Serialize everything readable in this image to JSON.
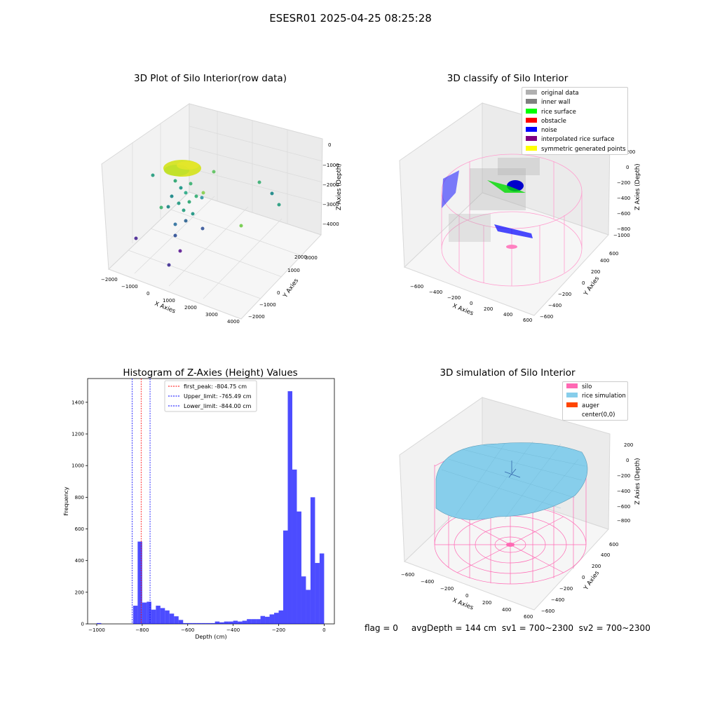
{
  "suptitle": "ESESR01 2025-04-25 08:25:28",
  "panels": {
    "raw": {
      "title": "3D Plot of Silo Interior(row data)",
      "xlabel": "X Axies",
      "ylabel": "Y Axies",
      "zlabel": "Z Axies (Depth)",
      "xticks": [
        "−2000",
        "−1000",
        "0",
        "1000",
        "2000",
        "3000",
        "4000"
      ],
      "yticks": [
        "−2000",
        "−1000",
        "0",
        "1000",
        "2000",
        "3000"
      ],
      "zticks": [
        "0",
        "−1000",
        "−2000",
        "−3000",
        "−4000"
      ]
    },
    "classify": {
      "title": "3D classify of Silo Interior",
      "xlabel": "X Axies",
      "ylabel": "Y Axies",
      "zlabel": "Z Axies (Depth)",
      "xticks": [
        "−600",
        "−400",
        "−200",
        "0",
        "200",
        "400",
        "600"
      ],
      "yticks": [
        "−600",
        "−400",
        "−200",
        "0",
        "200",
        "400",
        "600"
      ],
      "zticks": [
        "200",
        "0",
        "−200",
        "−400",
        "−600",
        "−800",
        "−1000"
      ],
      "legend": [
        {
          "label": "original data",
          "color": "#b0b0b0"
        },
        {
          "label": "inner wall",
          "color": "#808080"
        },
        {
          "label": "rice surface",
          "color": "#00ff00"
        },
        {
          "label": "obstacle",
          "color": "#ff0000"
        },
        {
          "label": "noise",
          "color": "#0000ff"
        },
        {
          "label": "interpolated rice surface",
          "color": "#800080"
        },
        {
          "label": "symmetric generated points",
          "color": "#ffff00"
        }
      ]
    },
    "histogram": {
      "title": "Histogram of Z-Axies (Height) Values",
      "xlabel": "Depth (cm)",
      "ylabel": "Frequency",
      "legend": [
        {
          "label": "first_peak: -804.75 cm",
          "color": "#ff0000"
        },
        {
          "label": "Upper_limit: -765.49 cm",
          "color": "#0000ff"
        },
        {
          "label": "Lower_limit: -844.00 cm",
          "color": "#0000ff"
        }
      ]
    },
    "simulation": {
      "title": "3D simulation of Silo Interior",
      "xlabel": "X Axies",
      "ylabel": "Y Axies",
      "zlabel": "Z Axies (Depth)",
      "xticks": [
        "−600",
        "−400",
        "−200",
        "0",
        "200",
        "400",
        "600"
      ],
      "yticks": [
        "−600",
        "−400",
        "−200",
        "0",
        "200",
        "400",
        "600"
      ],
      "zticks": [
        "200",
        "0",
        "−200",
        "−400",
        "−600",
        "−800"
      ],
      "legend": [
        {
          "label": "silo",
          "color": "#ff69b4"
        },
        {
          "label": "rice simulation",
          "color": "#87ceeb"
        },
        {
          "label": "auger",
          "color": "#ff4500"
        },
        {
          "label": "center(0,0)",
          "color": ""
        }
      ]
    }
  },
  "footer": "flag = 0     avgDepth = 144 cm  sv1 = 700~2300  sv2 = 700~2300",
  "chart_data": {
    "type": "bar",
    "title": "Histogram of Z-Axies (Height) Values",
    "xlabel": "Depth (cm)",
    "ylabel": "Frequency",
    "xlim": [
      -1040,
      45
    ],
    "ylim": [
      0,
      1550
    ],
    "xticks": [
      -1000,
      -800,
      -600,
      -400,
      -200,
      0
    ],
    "yticks": [
      0,
      200,
      400,
      600,
      800,
      1000,
      1200,
      1400
    ],
    "bar_color": "#0000ff",
    "bin_width": 20,
    "bins": [
      {
        "x": -980,
        "v": 5
      },
      {
        "x": -820,
        "v": 115
      },
      {
        "x": -800,
        "v": 520
      },
      {
        "x": -780,
        "v": 135
      },
      {
        "x": -760,
        "v": 140
      },
      {
        "x": -740,
        "v": 90
      },
      {
        "x": -720,
        "v": 115
      },
      {
        "x": -700,
        "v": 100
      },
      {
        "x": -680,
        "v": 85
      },
      {
        "x": -660,
        "v": 65
      },
      {
        "x": -640,
        "v": 48
      },
      {
        "x": -620,
        "v": 25
      },
      {
        "x": -600,
        "v": 5
      },
      {
        "x": -580,
        "v": 5
      },
      {
        "x": -560,
        "v": 5
      },
      {
        "x": -540,
        "v": 5
      },
      {
        "x": -520,
        "v": 5
      },
      {
        "x": -500,
        "v": 5
      },
      {
        "x": -480,
        "v": 5
      },
      {
        "x": -460,
        "v": 15
      },
      {
        "x": -440,
        "v": 10
      },
      {
        "x": -420,
        "v": 15
      },
      {
        "x": -400,
        "v": 15
      },
      {
        "x": -380,
        "v": 20
      },
      {
        "x": -360,
        "v": 15
      },
      {
        "x": -340,
        "v": 20
      },
      {
        "x": -320,
        "v": 30
      },
      {
        "x": -300,
        "v": 30
      },
      {
        "x": -280,
        "v": 30
      },
      {
        "x": -260,
        "v": 50
      },
      {
        "x": -240,
        "v": 45
      },
      {
        "x": -220,
        "v": 60
      },
      {
        "x": -200,
        "v": 70
      },
      {
        "x": -180,
        "v": 85
      },
      {
        "x": -160,
        "v": 590
      },
      {
        "x": -140,
        "v": 1470
      },
      {
        "x": -120,
        "v": 975
      },
      {
        "x": -100,
        "v": 710
      },
      {
        "x": -80,
        "v": 300
      },
      {
        "x": -60,
        "v": 215
      },
      {
        "x": -40,
        "v": 800
      },
      {
        "x": -20,
        "v": 385
      },
      {
        "x": 0,
        "v": 445
      }
    ],
    "vlines": [
      {
        "x": -804.75,
        "color": "#ff0000"
      },
      {
        "x": -765.49,
        "color": "#0000ff"
      },
      {
        "x": -844.0,
        "color": "#0000ff"
      }
    ]
  }
}
